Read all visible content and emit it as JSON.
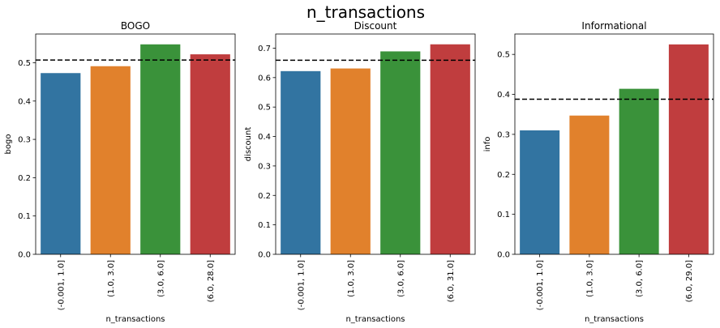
{
  "figure": {
    "suptitle": "n_transactions"
  },
  "chart_data": [
    {
      "type": "bar",
      "title": "BOGO",
      "xlabel": "n_transactions",
      "ylabel": "bogo",
      "categories": [
        "(-0.001, 1.0]",
        "(1.0, 3.0]",
        "(3.0, 6.0]",
        "(6.0, 28.0]"
      ],
      "values": [
        0.473,
        0.491,
        0.548,
        0.522
      ],
      "reference_line": 0.507,
      "ylim": [
        0,
        0.575
      ],
      "yticks": [
        0.0,
        0.1,
        0.2,
        0.3,
        0.4,
        0.5
      ],
      "ytick_labels": [
        "0.0",
        "0.1",
        "0.2",
        "0.3",
        "0.4",
        "0.5"
      ],
      "colors": [
        "#3274a1",
        "#e1812c",
        "#3a923a",
        "#c03d3e"
      ]
    },
    {
      "type": "bar",
      "title": "Discount",
      "xlabel": "n_transactions",
      "ylabel": "discount",
      "categories": [
        "(-0.001, 1.0]",
        "(1.0, 3.0]",
        "(3.0, 6.0]",
        "(6.0, 31.0]"
      ],
      "values": [
        0.622,
        0.631,
        0.689,
        0.713
      ],
      "reference_line": 0.659,
      "ylim": [
        0,
        0.748
      ],
      "yticks": [
        0.0,
        0.1,
        0.2,
        0.3,
        0.4,
        0.5,
        0.6,
        0.7
      ],
      "ytick_labels": [
        "0.0",
        "0.1",
        "0.2",
        "0.3",
        "0.4",
        "0.5",
        "0.6",
        "0.7"
      ],
      "colors": [
        "#3274a1",
        "#e1812c",
        "#3a923a",
        "#c03d3e"
      ]
    },
    {
      "type": "bar",
      "title": "Informational",
      "xlabel": "n_transactions",
      "ylabel": "info",
      "categories": [
        "(-0.001, 1.0]",
        "(1.0, 3.0]",
        "(3.0, 6.0]",
        "(6.0, 29.0]"
      ],
      "values": [
        0.31,
        0.347,
        0.414,
        0.525
      ],
      "reference_line": 0.388,
      "ylim": [
        0,
        0.551
      ],
      "yticks": [
        0.0,
        0.1,
        0.2,
        0.3,
        0.4,
        0.5
      ],
      "ytick_labels": [
        "0.0",
        "0.1",
        "0.2",
        "0.3",
        "0.4",
        "0.5"
      ],
      "colors": [
        "#3274a1",
        "#e1812c",
        "#3a923a",
        "#c03d3e"
      ]
    }
  ]
}
